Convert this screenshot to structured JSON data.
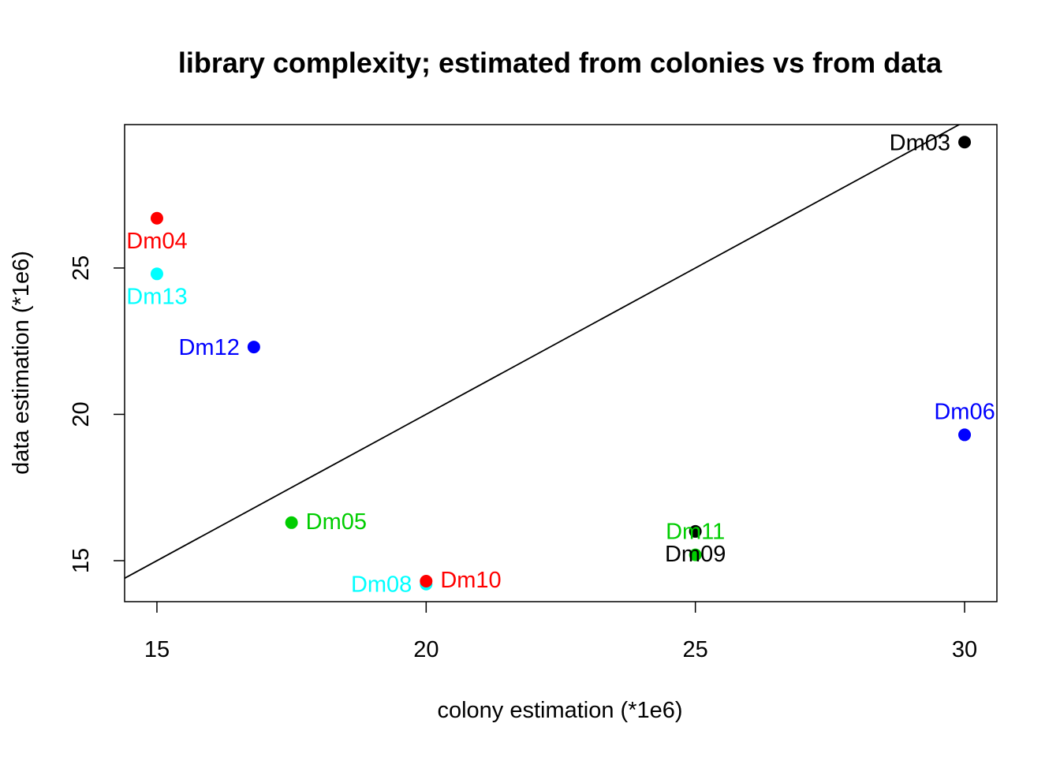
{
  "chart_data": {
    "type": "scatter",
    "title": "library complexity; estimated from colonies vs from data",
    "xlabel": "colony estimation (*1e6)",
    "ylabel": "data estimation (*1e6)",
    "xlim": [
      14.4,
      30.6
    ],
    "ylim": [
      13.6,
      29.9
    ],
    "xticks": [
      15,
      20,
      25,
      30
    ],
    "yticks": [
      15,
      20,
      25
    ],
    "grid": false,
    "reference_line": {
      "type": "y=x"
    },
    "points": [
      {
        "label": "Dm03",
        "x": 30.0,
        "y": 29.3,
        "color": "#000000",
        "label_pos": "left"
      },
      {
        "label": "Dm04",
        "x": 15.0,
        "y": 26.7,
        "color": "#ff0000",
        "label_pos": "below"
      },
      {
        "label": "Dm13",
        "x": 15.0,
        "y": 24.8,
        "color": "#00ffff",
        "label_pos": "below"
      },
      {
        "label": "Dm12",
        "x": 16.8,
        "y": 22.3,
        "color": "#0000ff",
        "label_pos": "left"
      },
      {
        "label": "Dm06",
        "x": 30.0,
        "y": 19.3,
        "color": "#0000ff",
        "label_pos": "above"
      },
      {
        "label": "Dm05",
        "x": 17.5,
        "y": 16.3,
        "color": "#00cd00",
        "label_pos": "right"
      },
      {
        "label": "Dm11",
        "x": 25.0,
        "y": 15.2,
        "color": "#00cd00",
        "label_pos": "above"
      },
      {
        "label": "Dm09",
        "x": 25.0,
        "y": 16.0,
        "color": "#000000",
        "label_pos": "below"
      },
      {
        "label": "Dm08",
        "x": 20.0,
        "y": 14.2,
        "color": "#00ffff",
        "label_pos": "left"
      },
      {
        "label": "Dm10",
        "x": 20.0,
        "y": 14.3,
        "color": "#ff0000",
        "label_pos": "right"
      }
    ]
  }
}
